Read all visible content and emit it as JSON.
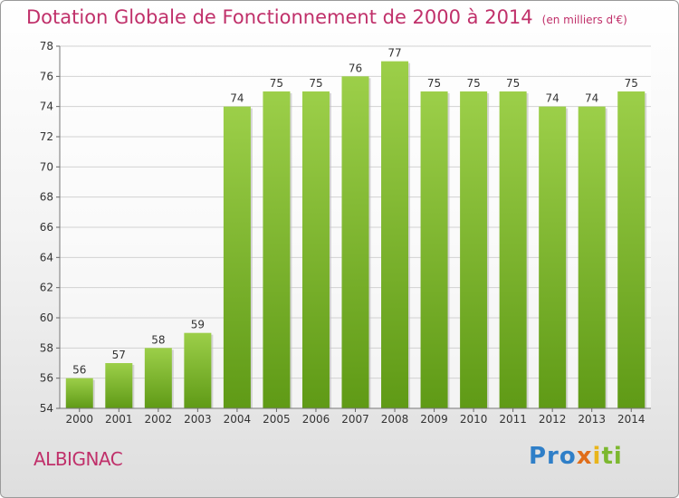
{
  "chart_data": {
    "type": "bar",
    "title": "Dotation Globale de Fonctionnement de 2000 à 2014",
    "subtitle": "(en milliers d'€)",
    "categories": [
      "2000",
      "2001",
      "2002",
      "2003",
      "2004",
      "2005",
      "2006",
      "2007",
      "2008",
      "2009",
      "2010",
      "2011",
      "2012",
      "2013",
      "2014"
    ],
    "values": [
      56,
      57,
      58,
      59,
      74,
      75,
      75,
      76,
      77,
      75,
      75,
      75,
      74,
      74,
      75
    ],
    "ylim": [
      54,
      78
    ],
    "yticks": [
      54,
      56,
      58,
      60,
      62,
      64,
      66,
      68,
      70,
      72,
      74,
      76,
      78
    ],
    "grid": true,
    "colors": {
      "bar_top": "#9ccf49",
      "bar_bottom": "#5f9a16",
      "title": "#c0306a"
    }
  },
  "footer": {
    "commune": "ALBIGNAC",
    "logo": {
      "p1": "Pro",
      "p2": "x",
      "p3": "i",
      "p4": "ti"
    }
  }
}
